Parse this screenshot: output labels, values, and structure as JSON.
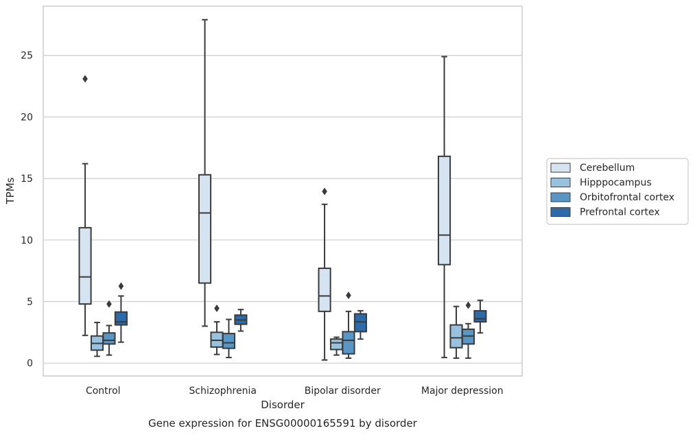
{
  "chart_data": {
    "type": "box",
    "title": "",
    "caption": "Gene expression for ENSG00000165591 by disorder",
    "xlabel": "Disorder",
    "ylabel": "TPMs",
    "ylim": [
      -1.05,
      29.0
    ],
    "yticks": [
      0,
      5,
      10,
      15,
      20,
      25
    ],
    "grid": "horizontal",
    "legend_position": "right",
    "categories": [
      "Control",
      "Schizophrenia",
      "Bipolar disorder",
      "Major depression"
    ],
    "series": [
      {
        "name": "Cerebellum",
        "color": "#d6e4f2",
        "boxes": [
          {
            "whislo": 2.25,
            "q1": 4.8,
            "med": 7.0,
            "q3": 11.0,
            "whishi": 16.2,
            "fliers": [
              23.1
            ]
          },
          {
            "whislo": 3.0,
            "q1": 6.5,
            "med": 12.2,
            "q3": 15.3,
            "whishi": 27.9,
            "fliers": []
          },
          {
            "whislo": 0.25,
            "q1": 4.2,
            "med": 5.45,
            "q3": 7.7,
            "whishi": 12.9,
            "fliers": [
              13.95
            ]
          },
          {
            "whislo": 0.45,
            "q1": 8.0,
            "med": 10.4,
            "q3": 16.8,
            "whishi": 24.9,
            "fliers": []
          }
        ]
      },
      {
        "name": "Hipppocampus",
        "color": "#99c2de",
        "boxes": [
          {
            "whislo": 0.55,
            "q1": 1.05,
            "med": 1.6,
            "q3": 2.2,
            "whishi": 3.3,
            "fliers": []
          },
          {
            "whislo": 0.7,
            "q1": 1.3,
            "med": 1.85,
            "q3": 2.5,
            "whishi": 3.35,
            "fliers": [
              4.45
            ]
          },
          {
            "whislo": 0.65,
            "q1": 1.1,
            "med": 1.65,
            "q3": 1.95,
            "whishi": 2.1,
            "fliers": []
          },
          {
            "whislo": 0.4,
            "q1": 1.25,
            "med": 2.05,
            "q3": 3.1,
            "whishi": 4.6,
            "fliers": []
          }
        ]
      },
      {
        "name": "Orbitofrontal cortex",
        "color": "#5796c5",
        "boxes": [
          {
            "whislo": 0.65,
            "q1": 1.55,
            "med": 1.85,
            "q3": 2.45,
            "whishi": 3.05,
            "fliers": [
              4.8
            ]
          },
          {
            "whislo": 0.45,
            "q1": 1.2,
            "med": 1.65,
            "q3": 2.4,
            "whishi": 3.55,
            "fliers": []
          },
          {
            "whislo": 0.4,
            "q1": 0.75,
            "med": 1.85,
            "q3": 2.55,
            "whishi": 4.2,
            "fliers": [
              5.5
            ]
          },
          {
            "whislo": 0.4,
            "q1": 1.55,
            "med": 2.2,
            "q3": 2.75,
            "whishi": 3.2,
            "fliers": [
              4.7
            ]
          }
        ]
      },
      {
        "name": "Prefrontal cortex",
        "color": "#2c6aa9",
        "boxes": [
          {
            "whislo": 1.7,
            "q1": 3.1,
            "med": 3.35,
            "q3": 4.15,
            "whishi": 5.45,
            "fliers": [
              6.25
            ]
          },
          {
            "whislo": 2.6,
            "q1": 3.15,
            "med": 3.5,
            "q3": 3.9,
            "whishi": 4.35,
            "fliers": []
          },
          {
            "whislo": 1.95,
            "q1": 2.55,
            "med": 3.35,
            "q3": 4.0,
            "whishi": 4.25,
            "fliers": []
          },
          {
            "whislo": 2.45,
            "q1": 3.35,
            "med": 3.6,
            "q3": 4.25,
            "whishi": 5.1,
            "fliers": []
          }
        ]
      }
    ]
  }
}
